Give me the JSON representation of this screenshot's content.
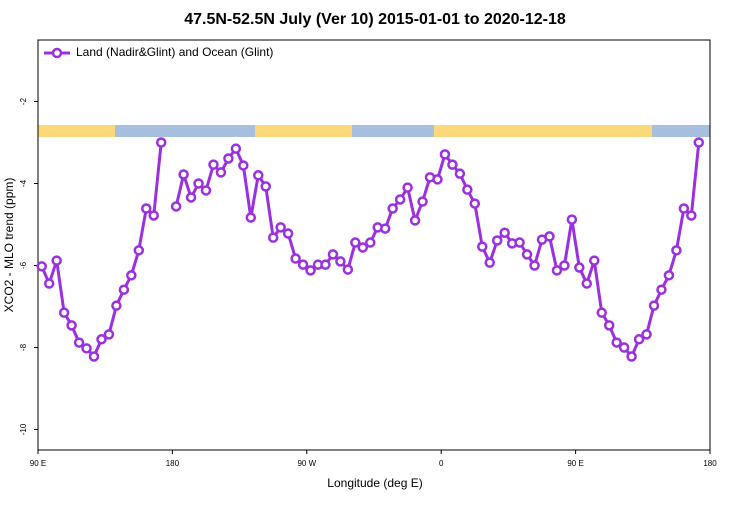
{
  "chart_data": {
    "type": "line",
    "title": "47.5N-52.5N July (Ver 10)   2015-01-01 to 2020-12-18",
    "x_label": "Longitude (deg E)",
    "y_label": "XCO2 - MLO trend (ppm)",
    "xlim": [
      90,
      540
    ],
    "xticks": [
      {
        "value": 90,
        "label": "90 E"
      },
      180,
      {
        "value": 270,
        "label": "90 W"
      },
      {
        "value": 360,
        "label": "0"
      },
      {
        "value": 450,
        "label": "90 E"
      },
      {
        "value": 540,
        "label": "180"
      }
    ],
    "ylim": [
      -10.5,
      -0.5
    ],
    "yticks": [
      -2,
      -4,
      -6,
      -8,
      -10
    ],
    "legend": "top-left",
    "x": [
      92.5,
      97.5,
      102.5,
      107.5,
      112.5,
      117.5,
      122.5,
      127.5,
      132.5,
      137.5,
      142.5,
      147.5,
      152.5,
      157.5,
      162.5,
      167.5,
      172.5,
      177.5,
      182.5,
      187.5,
      192.5,
      197.5,
      202.5,
      207.5,
      212.5,
      217.5,
      222.5,
      227.5,
      232.5,
      237.5,
      242.5,
      247.5,
      252.5,
      257.5,
      262.5,
      267.5,
      272.5,
      277.5,
      282.5,
      287.5,
      292.5,
      297.5,
      302.5,
      307.5,
      312.5,
      317.5,
      322.5,
      327.5,
      332.5,
      337.5,
      342.5,
      347.5,
      352.5,
      357.5,
      362.5,
      367.5,
      372.5,
      377.5,
      382.5,
      387.5,
      392.5,
      397.5,
      402.5,
      407.5,
      412.5,
      417.5,
      422.5,
      427.5,
      432.5,
      437.5,
      442.5,
      447.5,
      452.5,
      457.5,
      462.5,
      467.5,
      472.5,
      477.5,
      482.5,
      487.5,
      492.5,
      497.5,
      502.5,
      507.5,
      512.5,
      517.5,
      522.5,
      527.5,
      532.5
    ],
    "series": [
      {
        "name": "Land (Nadir&Glint) and Ocean (Glint)",
        "color": "#9b30e0",
        "values": [
          -6.02,
          -6.44,
          -5.88,
          -7.15,
          -7.46,
          -7.88,
          -8.02,
          -8.22,
          -7.8,
          -7.68,
          -6.98,
          -6.59,
          -6.24,
          -5.63,
          -4.61,
          -4.78,
          -3.0,
          null,
          -4.56,
          -3.78,
          -4.34,
          -4.0,
          -4.17,
          -3.54,
          -3.73,
          -3.39,
          -3.15,
          -3.56,
          -4.83,
          -3.8,
          -4.07,
          -5.32,
          -5.07,
          -5.22,
          -5.83,
          -5.98,
          -6.12,
          -5.98,
          -5.98,
          -5.73,
          -5.9,
          -6.1,
          -5.44,
          -5.56,
          -5.44,
          -5.07,
          -5.1,
          -4.61,
          -4.39,
          -4.1,
          -4.9,
          -4.44,
          -3.85,
          -3.9,
          -3.29,
          -3.54,
          -3.76,
          -4.15,
          -4.49,
          -5.54,
          -5.93,
          -5.39,
          -5.2,
          -5.46,
          -5.44,
          -5.73,
          -6.0,
          -5.37,
          -5.29,
          -6.12,
          -6.0,
          -4.88,
          -6.05,
          -6.44,
          -5.88,
          -7.15,
          -7.46,
          -7.88,
          -8.0,
          -8.22,
          -7.8,
          -7.68,
          -6.98,
          -6.59,
          -6.24,
          -5.63,
          -4.61,
          -4.78,
          -3.0
        ]
      }
    ]
  }
}
